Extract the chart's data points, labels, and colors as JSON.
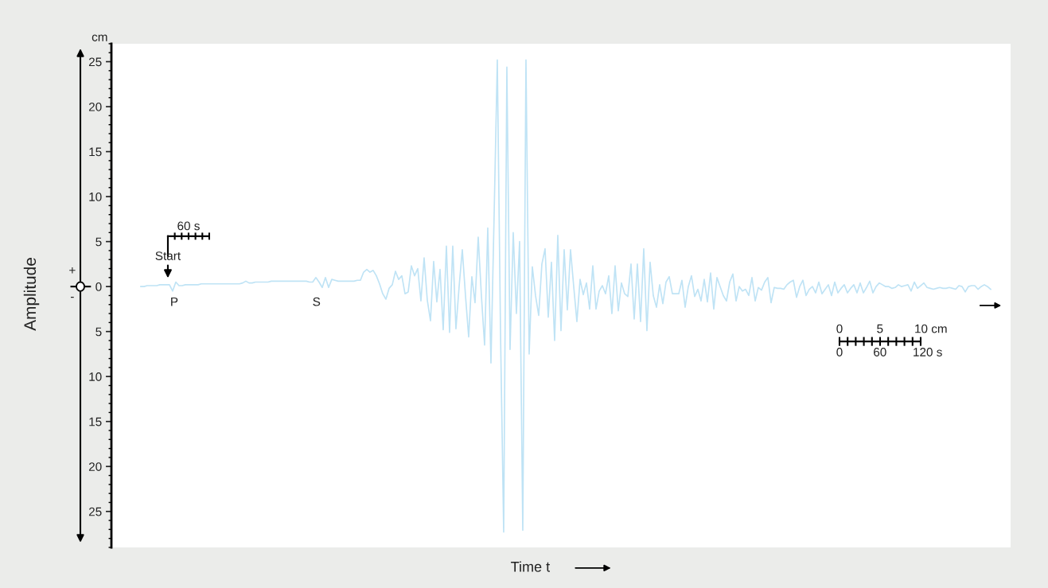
{
  "chart_data": {
    "type": "line",
    "ylabel": "Amplitude",
    "xlabel": "Time t",
    "ylim": [
      -29,
      27
    ],
    "yticks": [
      {
        "value": -25,
        "label": "25"
      },
      {
        "value": -20,
        "label": "20"
      },
      {
        "value": -15,
        "label": "15"
      },
      {
        "value": -10,
        "label": "10"
      },
      {
        "value": -5,
        "label": "5"
      },
      0,
      5,
      10,
      15,
      20,
      25
    ],
    "grid": false,
    "marker": "none",
    "line_style": "solid",
    "tick_labels": "y",
    "annotations": [
      "cm",
      "+",
      "-",
      "Start",
      "P",
      "S",
      "60 s",
      "0",
      "5",
      "10 cm",
      "0",
      "60",
      "120 s"
    ],
    "categories": [
      null,
      null,
      null,
      null,
      null,
      null,
      null,
      null,
      null,
      null,
      null,
      null,
      null,
      null,
      null,
      null,
      null,
      null,
      null,
      null,
      null,
      null,
      null,
      null,
      null,
      null,
      null,
      null,
      null,
      null,
      null,
      null,
      null,
      null,
      null,
      null,
      null,
      null,
      null,
      null,
      null,
      null,
      null,
      null,
      null,
      null,
      null,
      null,
      null,
      null,
      null,
      null,
      null,
      null,
      null,
      null,
      null,
      null,
      null,
      null,
      null,
      null,
      null,
      null,
      null,
      null,
      null,
      null,
      null,
      null,
      null,
      null,
      null,
      null,
      null,
      null,
      null,
      null,
      null,
      null,
      null,
      null,
      null,
      null,
      null,
      null,
      null,
      null,
      null,
      null,
      null,
      null,
      null,
      null,
      null,
      null,
      null,
      null,
      null,
      null,
      null,
      null,
      null,
      null,
      null,
      null,
      null,
      null,
      null,
      null,
      null,
      null,
      null,
      null,
      null,
      null,
      null,
      null,
      null,
      null,
      null,
      null,
      null,
      null,
      null,
      null,
      null,
      null,
      null,
      null,
      null,
      null,
      null,
      null,
      null,
      null,
      null,
      null,
      null,
      null,
      null,
      null,
      null,
      null,
      null,
      null,
      null,
      null,
      null,
      null,
      null,
      null,
      null,
      null,
      null,
      null,
      null,
      null,
      null,
      null,
      null,
      null,
      null,
      null,
      null,
      null,
      null,
      null,
      null,
      null,
      null,
      null,
      null,
      null,
      null,
      null,
      null,
      null,
      null,
      null,
      null,
      null,
      null,
      null,
      null,
      null,
      null,
      null,
      null,
      null,
      null,
      null,
      null,
      null,
      null,
      null,
      null,
      null,
      null,
      null,
      null,
      null,
      null,
      null,
      null,
      null,
      null,
      null,
      null,
      null,
      null,
      null,
      null,
      null,
      null,
      null,
      null,
      null,
      null,
      null,
      null,
      null,
      null,
      null,
      null,
      null,
      null,
      null,
      null,
      null,
      null,
      null,
      null,
      null,
      null,
      null,
      null,
      null,
      null,
      null,
      null,
      null,
      null,
      null,
      null,
      null,
      null,
      null,
      null,
      null,
      null,
      null,
      null,
      null,
      null,
      null,
      null,
      null,
      null,
      null,
      null,
      null,
      null,
      null,
      null,
      null,
      null,
      null
    ],
    "series": [
      {
        "color": "#bfe3f5",
        "values": [
          0.0,
          0.0,
          0.1,
          0.1,
          0.1,
          0.1,
          0.2,
          0.2,
          0.2,
          0.2,
          -0.5,
          0.5,
          0.1,
          0.1,
          0.2,
          0.2,
          0.2,
          0.2,
          0.2,
          0.3,
          0.3,
          0.3,
          0.3,
          0.3,
          0.3,
          0.3,
          0.3,
          0.3,
          0.3,
          0.3,
          0.3,
          0.3,
          0.4,
          0.6,
          0.4,
          0.4,
          0.5,
          0.5,
          0.5,
          0.5,
          0.5,
          0.6,
          0.6,
          0.6,
          0.6,
          0.6,
          0.6,
          0.6,
          0.6,
          0.6,
          0.6,
          0.6,
          0.6,
          0.5,
          0.5,
          1.0,
          0.5,
          -0.1,
          1.0,
          -0.1,
          0.8,
          0.7,
          0.6,
          0.6,
          0.6,
          0.6,
          0.6,
          0.6,
          0.7,
          0.7,
          1.6,
          1.9,
          1.6,
          1.8,
          1.2,
          0.3,
          -0.8,
          -1.4,
          -0.2,
          0.2,
          1.7,
          0.8,
          1.2,
          -0.8,
          -0.6,
          2.3,
          1.2,
          2.0,
          -1.6,
          3.2,
          -1.5,
          -3.8,
          2.8,
          -1.7,
          1.9,
          -4.8,
          4.5,
          -5.1,
          4.5,
          -4.7,
          0.0,
          4.1,
          -1.0,
          -5.6,
          1.1,
          -1.8,
          5.5,
          -1.0,
          -6.5,
          6.5,
          -8.5,
          8.0,
          25.2,
          -5.0,
          -27.3,
          24.4,
          -7.0,
          6.0,
          -3.0,
          5.0,
          -27.1,
          25.2,
          -7.5,
          2.2,
          -1.0,
          -3.2,
          2.5,
          4.2,
          -3.4,
          2.7,
          -6.0,
          5.7,
          -4.9,
          4.1,
          -2.6,
          4.1,
          0.0,
          -3.9,
          0.8,
          -0.9,
          0.4,
          -2.5,
          2.3,
          -2.5,
          -0.5,
          0.1,
          -0.8,
          1.2,
          -3.0,
          2.3,
          -2.7,
          0.4,
          -0.8,
          -1.1,
          2.5,
          -3.6,
          2.5,
          -3.9,
          4.2,
          -4.9,
          2.7,
          -1.0,
          -2.3,
          0.2,
          -1.9,
          0.5,
          1.1,
          -0.8,
          -0.8,
          -0.8,
          0.7,
          -2.3,
          0.0,
          1.2,
          -1.1,
          -0.3,
          -1.6,
          0.8,
          -1.7,
          1.5,
          -2.5,
          1.0,
          0.0,
          -1.0,
          -1.6,
          0.5,
          1.4,
          -1.6,
          0.0,
          -0.5,
          -0.3,
          -1.0,
          1.0,
          -1.6,
          -0.1,
          -0.4,
          0.5,
          1.0,
          -1.8,
          -0.1,
          -0.2,
          -0.2,
          -0.3,
          0.2,
          0.5,
          0.7,
          -1.2,
          0.0,
          0.7,
          -1.0,
          -0.3,
          0.0,
          -0.7,
          0.5,
          -0.8,
          -0.3,
          0.2,
          -1.0,
          0.5,
          -0.7,
          -0.2,
          0.2,
          -0.7,
          -0.2,
          0.2,
          -0.7,
          0.4,
          -0.7,
          -0.1,
          0.6,
          -0.7,
          0.0,
          0.4,
          0.2,
          0.0,
          0.0,
          -0.2,
          -0.1,
          0.2,
          0.0,
          0.1,
          0.2,
          -0.5,
          0.5,
          -0.2,
          0.1,
          0.4,
          -0.1,
          -0.2,
          -0.3,
          -0.2,
          -0.1,
          -0.2,
          -0.2,
          -0.1,
          -0.2,
          -0.3,
          0.1,
          0.0,
          -0.6,
          0.0,
          0.1,
          0.1,
          -0.3,
          0.0,
          0.2,
          0.0,
          -0.3
        ]
      }
    ]
  }
}
